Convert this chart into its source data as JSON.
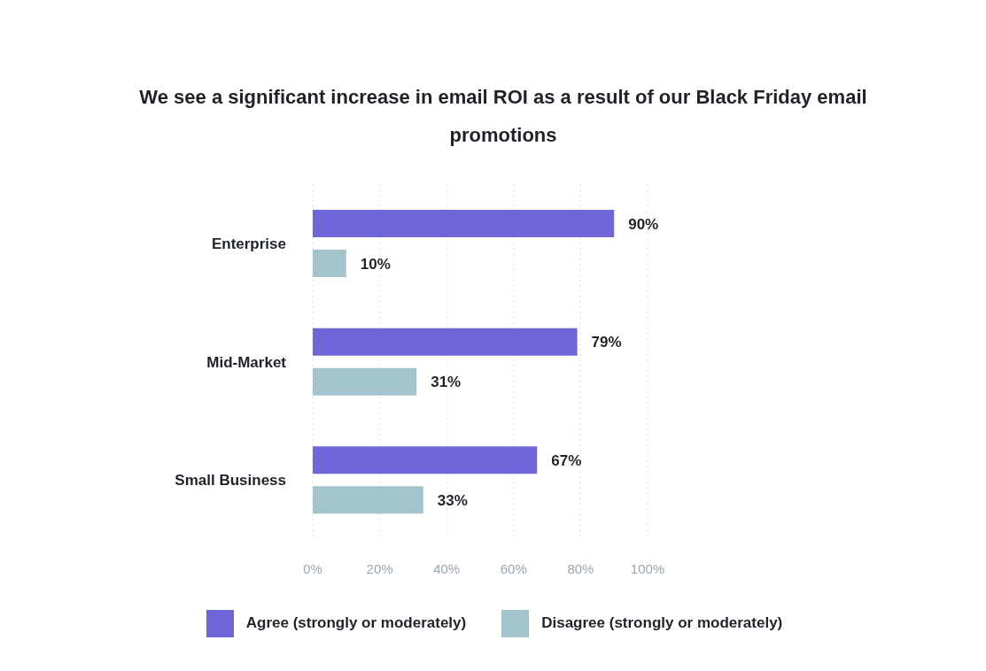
{
  "chart_data": {
    "type": "bar",
    "orientation": "horizontal",
    "title": "We see a significant increase in email ROI as a result of our Black Friday email promotions",
    "categories": [
      "Enterprise",
      "Mid-Market",
      "Small Business"
    ],
    "series": [
      {
        "name": "Agree (strongly or moderately)",
        "color": "#7066d9",
        "values": [
          90,
          79,
          67
        ],
        "value_labels": [
          "90%",
          "79%",
          "67%"
        ]
      },
      {
        "name": "Disagree (strongly or moderately)",
        "color": "#a3c4cc",
        "values": [
          10,
          31,
          33
        ],
        "value_labels": [
          "10%",
          "31%",
          "33%"
        ]
      }
    ],
    "xlim": [
      0,
      100
    ],
    "xticks": [
      {
        "value": 0,
        "label": "0%"
      },
      {
        "value": 20,
        "label": "20%"
      },
      {
        "value": 40,
        "label": "40%"
      },
      {
        "value": 60,
        "label": "60%"
      },
      {
        "value": 80,
        "label": "80%"
      },
      {
        "value": 100,
        "label": "100%"
      }
    ],
    "grid": "x",
    "legend": "bottom"
  }
}
